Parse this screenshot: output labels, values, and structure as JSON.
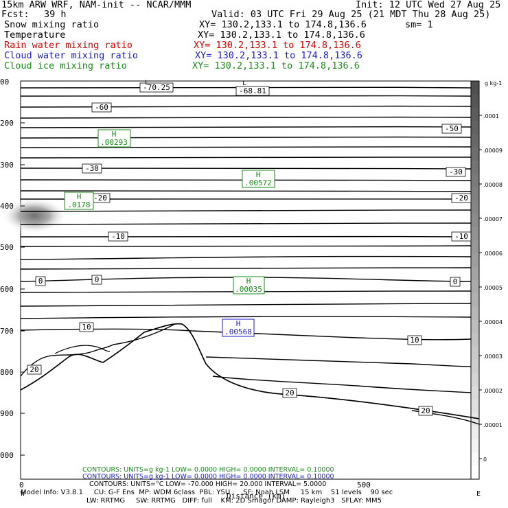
{
  "header": {
    "model_title": "15km ARW WRF, NAM-init -- NCAR/MMM",
    "init": "Init: 12 UTC Wed 27 Aug 25",
    "fcst_label": "Fcst:",
    "fcst_value": "39 h",
    "valid": "Valid: 03 UTC Fri 29 Aug 25 (21 MDT Thu 28 Aug 25)",
    "rows": [
      {
        "field": "Snow mixing ratio",
        "xy": "XY= 130.2,133.1 to 174.8,136.6",
        "extra": "sm= 1",
        "color": "#000000"
      },
      {
        "field": "Temperature",
        "xy": "XY= 130.2,133.1 to 174.8,136.6",
        "extra": "",
        "color": "#000000"
      },
      {
        "field": "Rain water mixing ratio",
        "xy": "XY= 130.2,133.1 to 174.8,136.6",
        "extra": "",
        "color": "#e00000"
      },
      {
        "field": "Cloud water mixing ratio",
        "xy": "XY= 130.2,133.1 to 174.8,136.6",
        "extra": "",
        "color": "#1a1acc"
      },
      {
        "field": "Cloud ice mixing ratio",
        "xy": "XY= 130.2,133.1 to 174.8,136.6",
        "extra": "",
        "color": "#1a8a1a"
      }
    ]
  },
  "chart_data": {
    "type": "contour cross-section",
    "y_axis_pressure_ticks": [
      "00",
      "200",
      "300",
      "400",
      "500",
      "600",
      "700",
      "800",
      "900",
      "000"
    ],
    "x_axis_ticks": [
      "0",
      "500"
    ],
    "x_label": "Distance (km)",
    "x_end_labels": [
      "W",
      "E"
    ],
    "colorbar": {
      "unit_label": "g kg-1",
      "tick_labels": [
        ".0001",
        ".00009",
        ".00008",
        ".00007",
        ".00006",
        ".00005",
        ".00004",
        ".00003",
        ".00002",
        ".00001",
        "0"
      ]
    },
    "temperature_contour_labels": [
      "-70.25",
      "-68.81",
      "-60",
      "-50",
      "-30",
      "-30",
      "-20",
      "-20",
      "-10",
      "-10",
      "0",
      "0",
      "0",
      "10",
      "10",
      "20",
      "20",
      "20"
    ],
    "maxima_boxes": [
      {
        "letter": "H",
        "value": ".00293",
        "field": "cloud ice",
        "color": "#1a8a1a"
      },
      {
        "letter": "H",
        "value": ".00572",
        "field": "cloud ice",
        "color": "#1a8a1a"
      },
      {
        "letter": "H",
        "value": ".0178",
        "field": "cloud ice",
        "color": "#1a8a1a"
      },
      {
        "letter": "H",
        "value": ".00035",
        "field": "cloud ice",
        "color": "#1a8a1a"
      },
      {
        "letter": "H",
        "value": ".00568",
        "field": "cloud water",
        "color": "#1a1acc"
      }
    ],
    "contour_info": [
      {
        "text": "CONTOURS:  UNITS=g kg-1  LOW=  0.0000       HIGH=  0.0000      INTERVAL=  0.10000",
        "color": "#1a8a1a"
      },
      {
        "text": "CONTOURS:  UNITS=g kg-1  LOW=  0.0000       HIGH=  0.0000      INTERVAL=  0.10000",
        "color": "#1a1acc"
      },
      {
        "text": "CONTOURS:  UNITS=°C  LOW= -70.000      HIGH=  20.000      INTERVAL=  5.0000",
        "color": "#000000"
      }
    ]
  },
  "footer": {
    "line1": "Model Info: V3.8.1     CU: G-F Ens  MP: WDM 6class  PBL: YSU      SF: Noah LSM     15 km    51 levels    90 sec",
    "line2": "LW: RRTMG     SW: RRTMG   DIFF: full    KM: 2D Smagor DAMP: Rayleigh3   SFLAY: MM5"
  }
}
